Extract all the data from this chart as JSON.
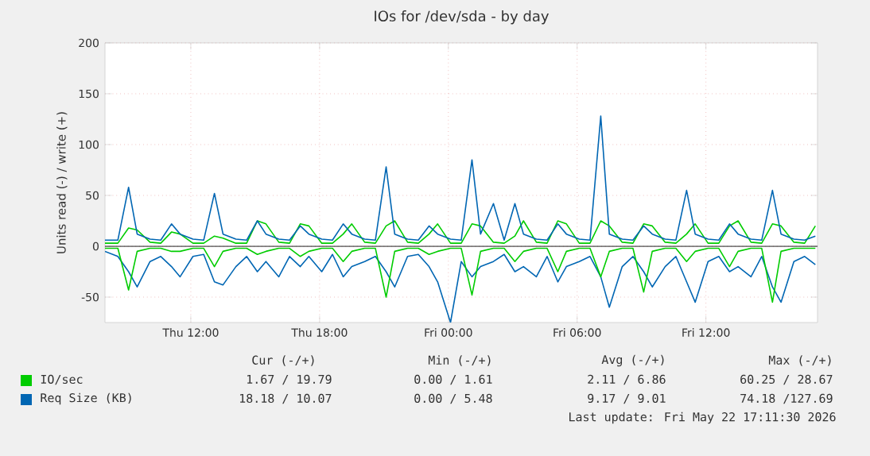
{
  "chart_data": {
    "type": "line",
    "title": "IOs for /dev/sda - by day",
    "ylabel": "Units read (-) / write (+)",
    "x": [
      "2026-05-21T08:00",
      "2026-05-21T08:36",
      "2026-05-21T09:06",
      "2026-05-21T09:30",
      "2026-05-21T10:06",
      "2026-05-21T10:36",
      "2026-05-21T11:06",
      "2026-05-21T11:30",
      "2026-05-21T12:06",
      "2026-05-21T12:36",
      "2026-05-21T13:06",
      "2026-05-21T13:30",
      "2026-05-21T14:06",
      "2026-05-21T14:36",
      "2026-05-21T15:06",
      "2026-05-21T15:30",
      "2026-05-21T16:06",
      "2026-05-21T16:36",
      "2026-05-21T17:06",
      "2026-05-21T17:30",
      "2026-05-21T18:06",
      "2026-05-21T18:36",
      "2026-05-21T19:06",
      "2026-05-21T19:30",
      "2026-05-21T20:06",
      "2026-05-21T20:36",
      "2026-05-21T21:06",
      "2026-05-21T21:30",
      "2026-05-21T22:06",
      "2026-05-21T22:36",
      "2026-05-21T23:06",
      "2026-05-21T23:30",
      "2026-05-22T00:06",
      "2026-05-22T00:36",
      "2026-05-22T01:06",
      "2026-05-22T01:30",
      "2026-05-22T02:06",
      "2026-05-22T02:36",
      "2026-05-22T03:06",
      "2026-05-22T03:30",
      "2026-05-22T04:06",
      "2026-05-22T04:36",
      "2026-05-22T05:06",
      "2026-05-22T05:30",
      "2026-05-22T06:06",
      "2026-05-22T06:36",
      "2026-05-22T07:06",
      "2026-05-22T07:30",
      "2026-05-22T08:06",
      "2026-05-22T08:36",
      "2026-05-22T09:06",
      "2026-05-22T09:30",
      "2026-05-22T10:06",
      "2026-05-22T10:36",
      "2026-05-22T11:06",
      "2026-05-22T11:30",
      "2026-05-22T12:06",
      "2026-05-22T12:36",
      "2026-05-22T13:06",
      "2026-05-22T13:30",
      "2026-05-22T14:06",
      "2026-05-22T14:36",
      "2026-05-22T15:06",
      "2026-05-22T15:30",
      "2026-05-22T16:06",
      "2026-05-22T16:36",
      "2026-05-22T17:06"
    ],
    "series": [
      {
        "color": "#0066b3",
        "values": [
          -5,
          -10,
          -25,
          -40,
          -15,
          -10,
          -20,
          -30,
          -10,
          -8,
          -35,
          -38,
          -20,
          -10,
          -25,
          -15,
          -30,
          -10,
          -20,
          -10,
          -25,
          -8,
          -30,
          -20,
          -15,
          -10,
          -25,
          -40,
          -10,
          -8,
          -20,
          -35,
          -75,
          -15,
          -30,
          -20,
          -15,
          -8,
          -25,
          -20,
          -30,
          -10,
          -35,
          -20,
          -15,
          -10,
          -30,
          -60,
          -20,
          -10,
          -25,
          -40,
          -20,
          -10,
          -35,
          -55,
          -15,
          -10,
          -25,
          -20,
          -30,
          -10,
          -40,
          -55,
          -15,
          -10,
          -18
        ]
      },
      {
        "color": "#00cc00",
        "values": [
          -2,
          -2,
          -43,
          -5,
          -2,
          -2,
          -5,
          -5,
          -2,
          -2,
          -20,
          -5,
          -2,
          -2,
          -8,
          -5,
          -2,
          -2,
          -10,
          -5,
          -2,
          -2,
          -15,
          -5,
          -2,
          -2,
          -50,
          -5,
          -2,
          -2,
          -8,
          -5,
          -2,
          -2,
          -48,
          -5,
          -2,
          -2,
          -15,
          -5,
          -2,
          -2,
          -25,
          -5,
          -2,
          -2,
          -30,
          -5,
          -2,
          -2,
          -45,
          -5,
          -2,
          -2,
          -15,
          -5,
          -2,
          -2,
          -20,
          -5,
          -2,
          -2,
          -55,
          -5,
          -2,
          -2,
          -2
        ]
      },
      {
        "name": "IO/sec",
        "color": "#00cc00",
        "values": [
          3,
          3,
          18,
          16,
          4,
          3,
          14,
          12,
          3,
          3,
          10,
          8,
          3,
          3,
          25,
          22,
          4,
          3,
          22,
          20,
          3,
          3,
          12,
          22,
          4,
          3,
          20,
          25,
          4,
          3,
          12,
          22,
          3,
          3,
          22,
          20,
          4,
          3,
          10,
          25,
          4,
          3,
          25,
          22,
          3,
          3,
          25,
          20,
          4,
          3,
          22,
          20,
          4,
          3,
          12,
          22,
          3,
          3,
          20,
          25,
          4,
          3,
          22,
          20,
          4,
          3,
          20
        ]
      },
      {
        "name": "Req Size (KB)",
        "color": "#0066b3",
        "values": [
          6,
          6,
          58,
          12,
          7,
          6,
          22,
          12,
          7,
          6,
          52,
          12,
          7,
          6,
          25,
          12,
          7,
          6,
          20,
          12,
          7,
          6,
          22,
          12,
          7,
          6,
          78,
          12,
          7,
          6,
          20,
          12,
          7,
          6,
          85,
          12,
          42,
          6,
          42,
          12,
          7,
          6,
          22,
          12,
          7,
          6,
          128,
          12,
          7,
          6,
          20,
          12,
          7,
          6,
          55,
          12,
          7,
          6,
          22,
          12,
          7,
          6,
          55,
          12,
          7,
          6,
          10
        ]
      }
    ],
    "xlim": [
      "2026-05-21T08:00",
      "2026-05-22T17:12"
    ],
    "ylim": [
      -75,
      200
    ],
    "xticks": [
      {
        "value": "2026-05-21T12:00",
        "label": "Thu 12:00"
      },
      {
        "value": "2026-05-21T18:00",
        "label": "Thu 18:00"
      },
      {
        "value": "2026-05-22T00:00",
        "label": "Fri 00:00"
      },
      {
        "value": "2026-05-22T06:00",
        "label": "Fri 06:00"
      },
      {
        "value": "2026-05-22T12:00",
        "label": "Fri 12:00"
      }
    ],
    "yticks": [
      -50,
      0,
      50,
      100,
      150,
      200
    ],
    "grid": true,
    "legend": "bottom left",
    "annotations": [
      "Cur (-/+)",
      "Min (-/+)",
      "Avg (-/+)",
      "Max (-/+)",
      "1.67 / 19.79",
      "0.00 /  1.61",
      "2.11 /  6.86",
      "60.25 / 28.67",
      "18.18 / 10.07",
      "0.00 /  5.48",
      "9.17 /  9.01",
      "74.18 /127.69",
      "Last update: Fri May 22 17:11:30 2026"
    ]
  }
}
